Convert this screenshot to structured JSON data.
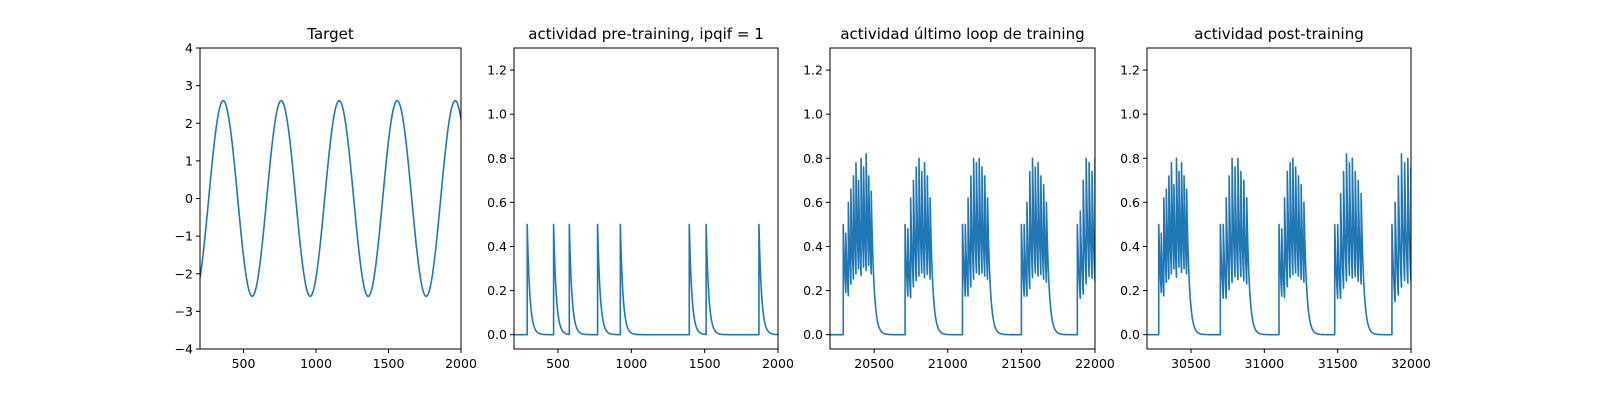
{
  "chart_data": [
    {
      "type": "line",
      "title": "Target",
      "xlim": [
        200,
        2000
      ],
      "ylim": [
        -4,
        4
      ],
      "xticks": [
        500,
        1000,
        1500,
        2000
      ],
      "yticks": [
        -4,
        -3,
        -2,
        -1,
        0,
        1,
        2,
        3,
        4
      ],
      "color": "#1f77b4",
      "series": [
        {
          "kind": "sine",
          "amplitude": 2.6,
          "period": 400,
          "peak_at": 360,
          "x_start": 200,
          "x_end": 2000
        }
      ]
    },
    {
      "type": "line",
      "title": "actividad pre-training, ipqif = 1",
      "xlim": [
        200,
        2000
      ],
      "ylim": [
        -0.065,
        1.3
      ],
      "xticks": [
        500,
        1000,
        1500,
        2000
      ],
      "yticks": [
        0.0,
        0.2,
        0.4,
        0.6,
        0.8,
        1.0,
        1.2
      ],
      "color": "#1f77b4",
      "series": [
        {
          "kind": "spikes",
          "x_start": 200,
          "x_end": 2000,
          "decay": 18,
          "spikes": [
            [
              290,
              0.5
            ],
            [
              470,
              0.5
            ],
            [
              577,
              0.5
            ],
            [
              770,
              0.5
            ],
            [
              925,
              0.5
            ],
            [
              1395,
              0.5
            ],
            [
              1510,
              0.5
            ],
            [
              1870,
              0.5
            ]
          ]
        }
      ]
    },
    {
      "type": "line",
      "title": "actividad último loop de training",
      "xlim": [
        20200,
        22000
      ],
      "ylim": [
        -0.065,
        1.3
      ],
      "xticks": [
        20500,
        21000,
        21500,
        22000
      ],
      "yticks": [
        0.0,
        0.2,
        0.4,
        0.6,
        0.8,
        1.0,
        1.2
      ],
      "color": "#1f77b4",
      "series": [
        {
          "kind": "bursts",
          "x_start": 20200,
          "x_end": 22000,
          "decay": 18,
          "bursts": [
            {
              "start": 20290,
              "end": 20480,
              "peaks": [
                0.5,
                0.46,
                0.6,
                0.66,
                0.72,
                0.78,
                0.7,
                0.8,
                0.76,
                0.82,
                0.72,
                0.65
              ]
            },
            {
              "start": 20710,
              "end": 20880,
              "peaks": [
                0.5,
                0.48,
                0.62,
                0.7,
                0.76,
                0.8,
                0.74,
                0.78,
                0.72,
                0.62
              ]
            },
            {
              "start": 21100,
              "end": 21270,
              "peaks": [
                0.5,
                0.5,
                0.62,
                0.72,
                0.8,
                0.78,
                0.8,
                0.76,
                0.72,
                0.62
              ]
            },
            {
              "start": 21500,
              "end": 21670,
              "peaks": [
                0.5,
                0.5,
                0.6,
                0.74,
                0.8,
                0.76,
                0.78,
                0.72,
                0.68,
                0.6
              ]
            },
            {
              "start": 21880,
              "end": 22000,
              "peaks": [
                0.5,
                0.56,
                0.7,
                0.8,
                0.78,
                0.74,
                0.8
              ]
            }
          ]
        }
      ]
    },
    {
      "type": "line",
      "title": "actividad post-training",
      "xlim": [
        30200,
        32000
      ],
      "ylim": [
        -0.065,
        1.3
      ],
      "xticks": [
        30500,
        31000,
        31500,
        32000
      ],
      "yticks": [
        0.0,
        0.2,
        0.4,
        0.6,
        0.8,
        1.0,
        1.2
      ],
      "color": "#1f77b4",
      "series": [
        {
          "kind": "bursts",
          "x_start": 30200,
          "x_end": 32000,
          "decay": 18,
          "bursts": [
            {
              "start": 30280,
              "end": 30470,
              "peaks": [
                0.5,
                0.46,
                0.62,
                0.66,
                0.72,
                0.78,
                0.68,
                0.8,
                0.74,
                0.78,
                0.72,
                0.66
              ]
            },
            {
              "start": 30700,
              "end": 30880,
              "peaks": [
                0.5,
                0.5,
                0.62,
                0.72,
                0.8,
                0.76,
                0.8,
                0.74,
                0.7,
                0.62
              ]
            },
            {
              "start": 31100,
              "end": 31270,
              "peaks": [
                0.5,
                0.48,
                0.62,
                0.74,
                0.78,
                0.8,
                0.76,
                0.72,
                0.68,
                0.6
              ]
            },
            {
              "start": 31480,
              "end": 31660,
              "peaks": [
                0.5,
                0.5,
                0.64,
                0.74,
                0.82,
                0.78,
                0.8,
                0.74,
                0.7,
                0.64
              ]
            },
            {
              "start": 31870,
              "end": 32000,
              "peaks": [
                0.5,
                0.6,
                0.72,
                0.82,
                0.78,
                0.8,
                0.76
              ]
            }
          ]
        }
      ]
    }
  ]
}
